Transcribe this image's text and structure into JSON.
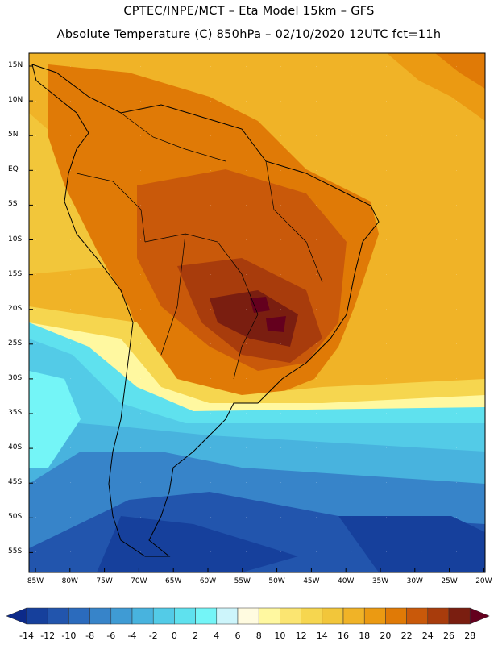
{
  "header": {
    "line1": "CPTEC/INPE/MCT –   Eta Model 15km – GFS",
    "line2": "Absolute Temperature (C) 850hPa – 02/10/2020 12UTC fct=11h"
  },
  "map": {
    "lat_labels": [
      "15N",
      "10N",
      "5N",
      "EQ",
      "5S",
      "10S",
      "15S",
      "20S",
      "25S",
      "30S",
      "35S",
      "40S",
      "45S",
      "50S",
      "55S"
    ],
    "lon_labels": [
      "85W",
      "80W",
      "75W",
      "70W",
      "65W",
      "60W",
      "55W",
      "50W",
      "45W",
      "40W",
      "35W",
      "30W",
      "25W",
      "20W"
    ],
    "regions": [
      {
        "name": "northern-warm-band",
        "temp_c": 20
      },
      {
        "name": "amazon-hot-zone",
        "temp_c": 22
      },
      {
        "name": "central-brazil-hot-zone",
        "temp_c": 24
      },
      {
        "name": "parana-hotspot",
        "temp_c": 28
      },
      {
        "name": "southern-cool-band",
        "temp_c": 4
      },
      {
        "name": "patagonia-cold-zone",
        "temp_c": -6
      }
    ]
  },
  "colorbar": {
    "labels": [
      "-14",
      "-12",
      "-10",
      "-8",
      "-6",
      "-4",
      "-2",
      "0",
      "2",
      "4",
      "6",
      "8",
      "10",
      "12",
      "14",
      "16",
      "18",
      "20",
      "22",
      "24",
      "26",
      "28"
    ],
    "colors": [
      "#0c2a8a",
      "#16409c",
      "#2255ad",
      "#2b6bbd",
      "#3784c9",
      "#3f9bd4",
      "#48b3de",
      "#53cbe7",
      "#5fe1ee",
      "#74f5f7",
      "#cdf5fb",
      "#fffbe0",
      "#fff8a0",
      "#fbe571",
      "#f6d64f",
      "#f2c63a",
      "#f0b327",
      "#eb9a12",
      "#e07a06",
      "#c9590a",
      "#a83c0c",
      "#7a1e10",
      "#64001e"
    ]
  }
}
